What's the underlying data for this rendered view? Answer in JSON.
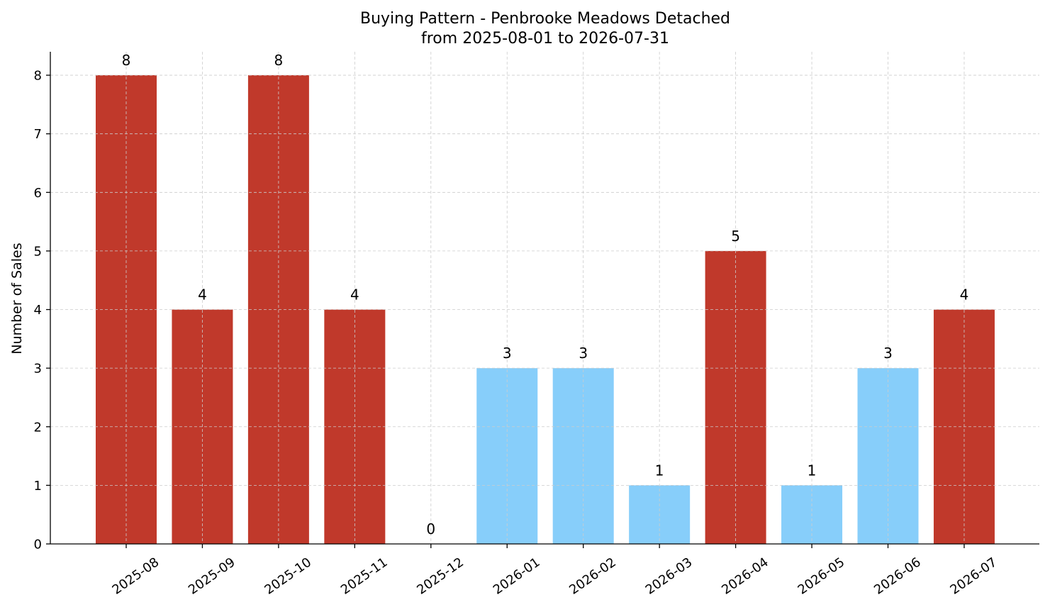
{
  "chart_data": {
    "type": "bar",
    "title": "Buying Pattern - Penbrooke Meadows Detached",
    "subtitle": "from 2025-08-01 to 2026-07-31",
    "xlabel": "",
    "ylabel": "Number of Sales",
    "ylim": [
      0,
      8.4
    ],
    "yticks": [
      0,
      1,
      2,
      3,
      4,
      5,
      6,
      7,
      8
    ],
    "grid": true,
    "categories": [
      "2025-08",
      "2025-09",
      "2025-10",
      "2025-11",
      "2025-12",
      "2026-01",
      "2026-02",
      "2026-03",
      "2026-04",
      "2026-05",
      "2026-06",
      "2026-07"
    ],
    "values": [
      8,
      4,
      8,
      4,
      0,
      3,
      3,
      1,
      5,
      1,
      3,
      4
    ],
    "bar_colors": [
      "#c0392b",
      "#c0392b",
      "#c0392b",
      "#c0392b",
      "#87cefa",
      "#87cefa",
      "#87cefa",
      "#87cefa",
      "#c0392b",
      "#87cefa",
      "#87cefa",
      "#c0392b"
    ]
  }
}
